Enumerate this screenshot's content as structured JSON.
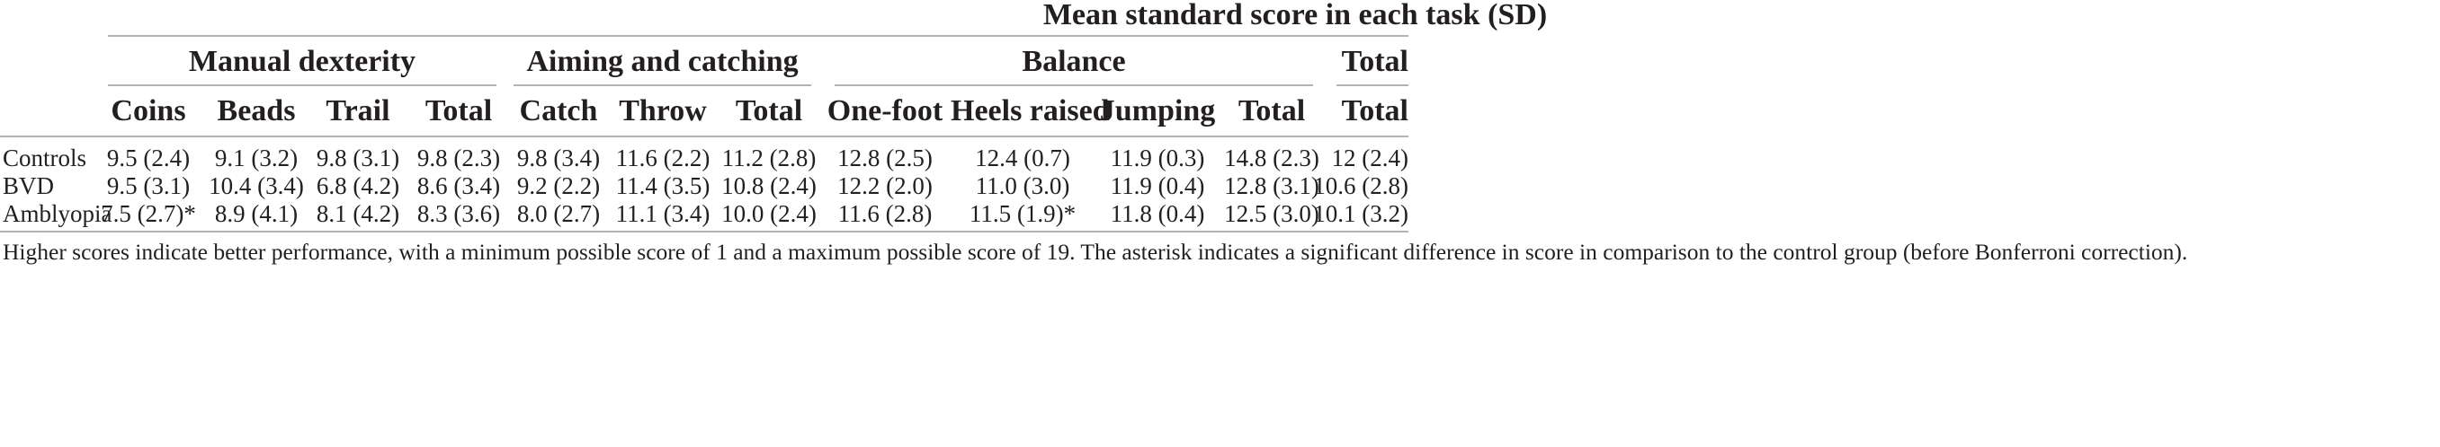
{
  "table": {
    "super_header": "Mean standard score in each task (SD)",
    "groups": [
      {
        "label": "Manual dexterity"
      },
      {
        "label": "Aiming and catching"
      },
      {
        "label": "Balance"
      },
      {
        "label": "Total"
      }
    ],
    "columns": [
      "Coins",
      "Beads",
      "Trail",
      "Total",
      "Catch",
      "Throw",
      "Total",
      "One-foot",
      "Heels raised",
      "Jumping",
      "Total",
      "Total"
    ],
    "rows": [
      {
        "label": "Controls",
        "cells": [
          "9.5 (2.4)",
          "9.1 (3.2)",
          "9.8 (3.1)",
          "9.8 (2.3)",
          "9.8 (3.4)",
          "11.6 (2.2)",
          "11.2 (2.8)",
          "12.8 (2.5)",
          "12.4 (0.7)",
          "11.9 (0.3)",
          "14.8 (2.3)",
          "12 (2.4)"
        ]
      },
      {
        "label": "BVD",
        "cells": [
          "9.5 (3.1)",
          "10.4 (3.4)",
          "6.8 (4.2)",
          "8.6 (3.4)",
          "9.2 (2.2)",
          "11.4 (3.5)",
          "10.8 (2.4)",
          "12.2 (2.0)",
          "11.0 (3.0)",
          "11.9 (0.4)",
          "12.8 (3.1)",
          "10.6 (2.8)"
        ]
      },
      {
        "label": "Amblyopia",
        "cells": [
          "7.5 (2.7)*",
          "8.9 (4.1)",
          "8.1 (4.2)",
          "8.3 (3.6)",
          "8.0 (2.7)",
          "11.1 (3.4)",
          "10.0 (2.4)",
          "11.6 (2.8)",
          "11.5 (1.9)*",
          "11.8 (0.4)",
          "12.5 (3.0)",
          "10.1 (3.2)"
        ]
      }
    ],
    "footnote": "Higher scores indicate better performance, with a minimum possible score of 1 and a maximum possible score of 19. The asterisk indicates a significant difference in score in comparison to the control group (before Bonferroni correction)."
  }
}
